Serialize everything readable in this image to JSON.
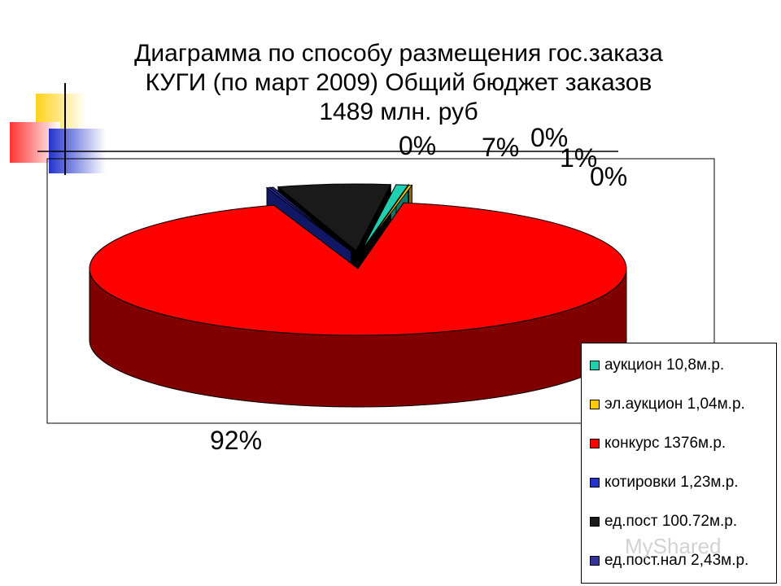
{
  "chart_data": {
    "type": "pie",
    "title_lines": [
      "Диаграмма по способу размещения гос.заказа",
      "КУГИ (по март 2009) Общий бюджет заказов",
      "1489 млн. руб"
    ],
    "slices": [
      {
        "legend": "аукцион 10,8м.р.",
        "value": 10.8,
        "pct_label": "1%",
        "color": "#1ed0b0",
        "side_color": "#0f7a66"
      },
      {
        "legend": "эл.аукцион 1,04м.р.",
        "value": 1.04,
        "pct_label": "0%",
        "color": "#ffcc00",
        "side_color": "#8a7000"
      },
      {
        "legend": "конкурс 1376м.р.",
        "value": 1376,
        "pct_label": "92%",
        "color": "#ff0000",
        "side_color": "#800000"
      },
      {
        "legend": "котировки 1,23м.р.",
        "value": 1.23,
        "pct_label": "0%",
        "color": "#2233cc",
        "side_color": "#101866"
      },
      {
        "legend": "ед.пост 100.72м.р.",
        "value": 100.72,
        "pct_label": "7%",
        "color": "#1a1a1a",
        "side_color": "#000000"
      },
      {
        "legend": "ед.пост.нал 2,43м.р.",
        "value": 2.43,
        "pct_label": "0%",
        "color": "#333399",
        "side_color": "#1a1a4d"
      }
    ],
    "legend_placement": "bottom-right"
  },
  "watermark": "MyShared"
}
